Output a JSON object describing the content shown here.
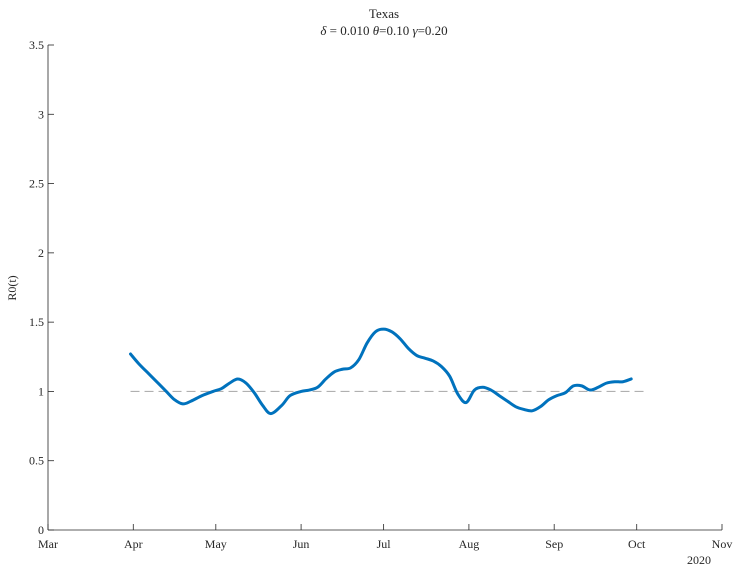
{
  "chart_data": {
    "type": "line",
    "title": "Texas",
    "subtitle": "δ = 0.010  θ=0.10  γ=0.20",
    "subtitle_parts": [
      {
        "sym": "δ",
        "text": " = 0.010  "
      },
      {
        "sym": "θ",
        "text": "=0.10  "
      },
      {
        "sym": "γ",
        "text": "=0.20"
      }
    ],
    "xlabel": "",
    "ylabel": "R0(t)",
    "year_label": "2020",
    "xlim": [
      "2020-03-01",
      "2020-11-01"
    ],
    "ylim": [
      0,
      3.5
    ],
    "x_ticks": [
      {
        "date": "2020-03-01",
        "label": "Mar"
      },
      {
        "date": "2020-04-01",
        "label": "Apr"
      },
      {
        "date": "2020-05-01",
        "label": "May"
      },
      {
        "date": "2020-06-01",
        "label": "Jun"
      },
      {
        "date": "2020-07-01",
        "label": "Jul"
      },
      {
        "date": "2020-08-01",
        "label": "Aug"
      },
      {
        "date": "2020-09-01",
        "label": "Sep"
      },
      {
        "date": "2020-10-01",
        "label": "Oct"
      },
      {
        "date": "2020-11-01",
        "label": "Nov"
      }
    ],
    "y_ticks": [
      {
        "value": 0,
        "label": "0"
      },
      {
        "value": 0.5,
        "label": "0.5"
      },
      {
        "value": 1,
        "label": "1"
      },
      {
        "value": 1.5,
        "label": "1.5"
      },
      {
        "value": 2,
        "label": "2"
      },
      {
        "value": 2.5,
        "label": "2.5"
      },
      {
        "value": 3,
        "label": "3"
      },
      {
        "value": 3.5,
        "label": "3.5"
      }
    ],
    "grid": false,
    "reference_line": {
      "y": 1,
      "x_start": "2020-03-31",
      "x_end": "2020-10-05",
      "style": "dashed",
      "color": "#b0b0b0"
    },
    "series": [
      {
        "color": "#0072bd",
        "x": [
          "2020-03-31",
          "2020-04-03",
          "2020-04-07",
          "2020-04-10",
          "2020-04-13",
          "2020-04-16",
          "2020-04-19",
          "2020-04-22",
          "2020-04-26",
          "2020-04-30",
          "2020-05-03",
          "2020-05-06",
          "2020-05-09",
          "2020-05-12",
          "2020-05-15",
          "2020-05-18",
          "2020-05-21",
          "2020-05-25",
          "2020-05-28",
          "2020-06-01",
          "2020-06-04",
          "2020-06-07",
          "2020-06-10",
          "2020-06-13",
          "2020-06-16",
          "2020-06-19",
          "2020-06-22",
          "2020-06-25",
          "2020-06-28",
          "2020-07-01",
          "2020-07-04",
          "2020-07-07",
          "2020-07-10",
          "2020-07-13",
          "2020-07-16",
          "2020-07-19",
          "2020-07-22",
          "2020-07-25",
          "2020-07-28",
          "2020-07-31",
          "2020-08-03",
          "2020-08-06",
          "2020-08-09",
          "2020-08-12",
          "2020-08-15",
          "2020-08-18",
          "2020-08-21",
          "2020-08-24",
          "2020-08-27",
          "2020-08-30",
          "2020-09-02",
          "2020-09-05",
          "2020-09-08",
          "2020-09-11",
          "2020-09-14",
          "2020-09-17",
          "2020-09-20",
          "2020-09-23",
          "2020-09-26",
          "2020-09-29"
        ],
        "values": [
          1.27,
          1.2,
          1.12,
          1.06,
          1.0,
          0.94,
          0.91,
          0.93,
          0.97,
          1.0,
          1.02,
          1.06,
          1.09,
          1.06,
          0.99,
          0.9,
          0.84,
          0.9,
          0.97,
          1.0,
          1.01,
          1.03,
          1.09,
          1.14,
          1.16,
          1.17,
          1.23,
          1.35,
          1.43,
          1.45,
          1.43,
          1.38,
          1.31,
          1.26,
          1.24,
          1.22,
          1.18,
          1.11,
          0.98,
          0.92,
          1.01,
          1.03,
          1.01,
          0.97,
          0.93,
          0.89,
          0.87,
          0.86,
          0.89,
          0.94,
          0.97,
          0.99,
          1.04,
          1.04,
          1.01,
          1.03,
          1.06,
          1.07,
          1.07,
          1.09
        ]
      }
    ]
  }
}
